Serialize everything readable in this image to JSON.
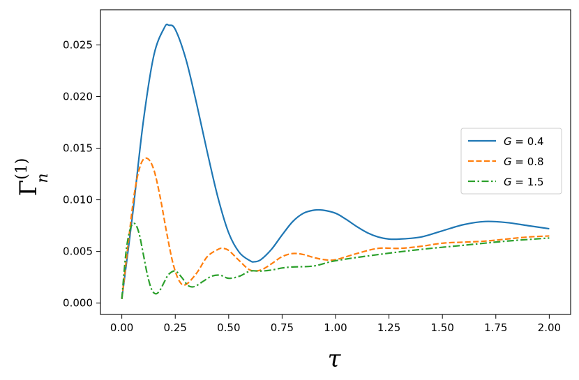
{
  "chart_data": {
    "type": "line",
    "title": "",
    "xlabel": "τ",
    "ylabel": {
      "base": "Γ",
      "sup": "(1)",
      "sub": "n"
    },
    "xlim": [
      -0.1,
      2.1
    ],
    "ylim": [
      -0.0011,
      0.0284
    ],
    "xticks": [
      "0.00",
      "0.25",
      "0.50",
      "0.75",
      "1.00",
      "1.25",
      "1.50",
      "1.75",
      "2.00"
    ],
    "yticks": [
      "0.000",
      "0.005",
      "0.010",
      "0.015",
      "0.020",
      "0.025"
    ],
    "grid": false,
    "legend_position": "center-right",
    "series": [
      {
        "name": "G = 0.4",
        "legend": {
          "var": "G",
          "eq": " = 0.4"
        },
        "color": "#1f77b4",
        "dash": "solid",
        "x": [
          0.0,
          0.05,
          0.1,
          0.15,
          0.2,
          0.22,
          0.25,
          0.3,
          0.35,
          0.4,
          0.45,
          0.5,
          0.55,
          0.6,
          0.62,
          0.65,
          0.7,
          0.75,
          0.8,
          0.85,
          0.9,
          0.94,
          1.0,
          1.05,
          1.1,
          1.15,
          1.2,
          1.25,
          1.3,
          1.4,
          1.5,
          1.6,
          1.7,
          1.8,
          1.9,
          2.0
        ],
        "y": [
          0.0004,
          0.0085,
          0.0175,
          0.024,
          0.0267,
          0.0269,
          0.0265,
          0.0236,
          0.0193,
          0.0146,
          0.0102,
          0.0068,
          0.0049,
          0.0041,
          0.004,
          0.0042,
          0.0052,
          0.0066,
          0.0079,
          0.0087,
          0.009,
          0.009,
          0.0087,
          0.0081,
          0.0074,
          0.0068,
          0.0064,
          0.0062,
          0.0062,
          0.0064,
          0.007,
          0.0076,
          0.0079,
          0.0078,
          0.0075,
          0.0072
        ]
      },
      {
        "name": "G = 0.8",
        "legend": {
          "var": "G",
          "eq": " = 0.8"
        },
        "color": "#ff7f0e",
        "dash": "dashed",
        "x": [
          0.0,
          0.03,
          0.06,
          0.09,
          0.12,
          0.15,
          0.18,
          0.21,
          0.24,
          0.27,
          0.3,
          0.35,
          0.4,
          0.45,
          0.47,
          0.5,
          0.55,
          0.6,
          0.65,
          0.7,
          0.75,
          0.8,
          0.85,
          0.9,
          0.95,
          1.0,
          1.1,
          1.2,
          1.3,
          1.4,
          1.5,
          1.6,
          1.7,
          1.8,
          1.9,
          2.0
        ],
        "y": [
          0.0004,
          0.0058,
          0.0108,
          0.0135,
          0.014,
          0.0129,
          0.0102,
          0.0068,
          0.0038,
          0.0021,
          0.0018,
          0.0029,
          0.0045,
          0.0052,
          0.0053,
          0.0051,
          0.0041,
          0.0032,
          0.0032,
          0.0038,
          0.0045,
          0.0048,
          0.0047,
          0.0044,
          0.0042,
          0.0042,
          0.0048,
          0.0053,
          0.0053,
          0.0055,
          0.0058,
          0.0059,
          0.006,
          0.0062,
          0.0064,
          0.0065
        ]
      },
      {
        "name": "G = 1.5",
        "legend": {
          "var": "G",
          "eq": " = 1.5"
        },
        "color": "#2ca02c",
        "dash": "dashdot",
        "x": [
          0.0,
          0.02,
          0.04,
          0.06,
          0.08,
          0.1,
          0.12,
          0.14,
          0.16,
          0.18,
          0.2,
          0.22,
          0.25,
          0.28,
          0.31,
          0.34,
          0.38,
          0.42,
          0.46,
          0.5,
          0.55,
          0.6,
          0.65,
          0.7,
          0.75,
          0.8,
          0.9,
          1.0,
          1.2,
          1.4,
          1.6,
          1.8,
          2.0
        ],
        "y": [
          0.0004,
          0.005,
          0.0072,
          0.0077,
          0.0068,
          0.0048,
          0.0027,
          0.0013,
          0.0009,
          0.0013,
          0.0021,
          0.0028,
          0.0031,
          0.0025,
          0.0017,
          0.0016,
          0.0021,
          0.0026,
          0.0027,
          0.0024,
          0.0026,
          0.0031,
          0.0031,
          0.0032,
          0.0034,
          0.0035,
          0.0036,
          0.0041,
          0.0047,
          0.0052,
          0.0056,
          0.006,
          0.0063
        ]
      }
    ]
  }
}
